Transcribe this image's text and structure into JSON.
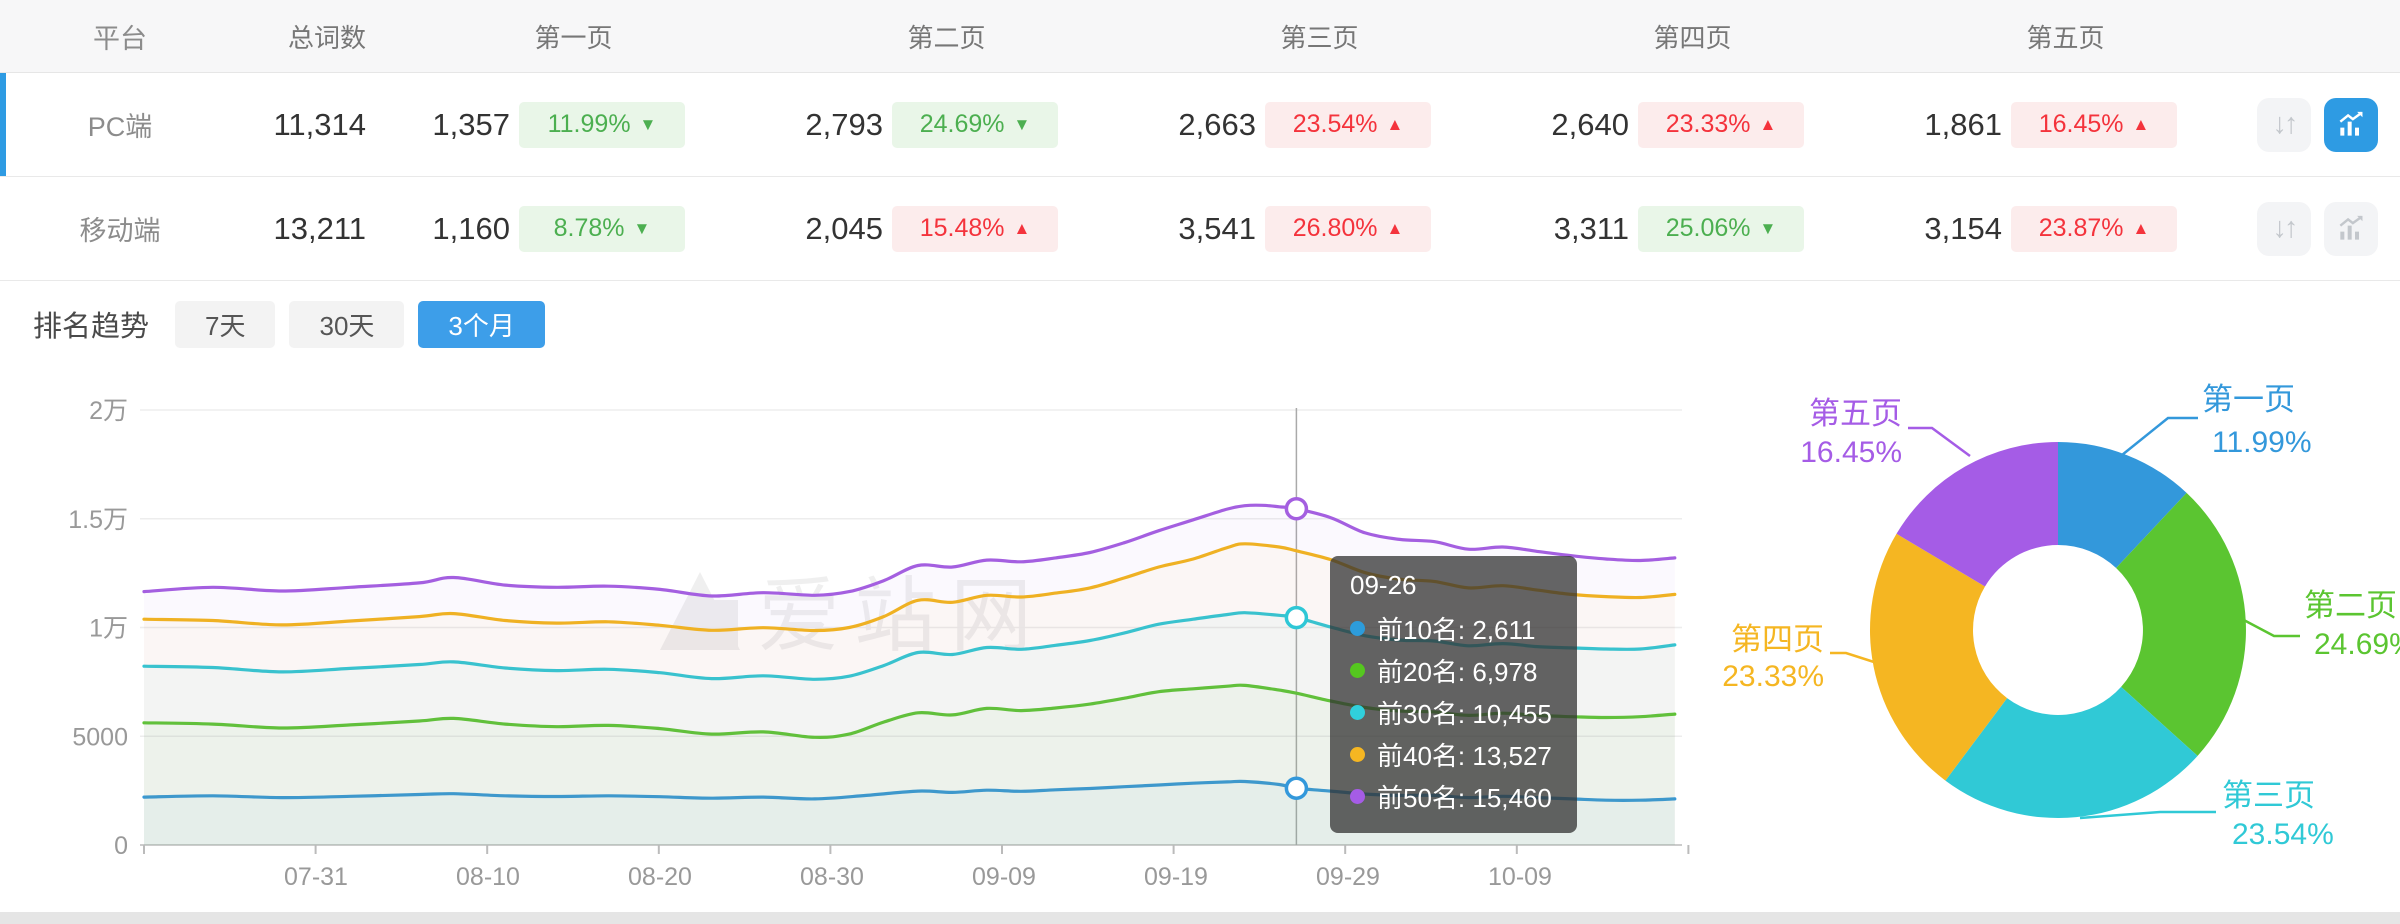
{
  "table": {
    "headers": {
      "platform": "平台",
      "total": "总词数",
      "p1": "第一页",
      "p2": "第二页",
      "p3": "第三页",
      "p4": "第四页",
      "p5": "第五页"
    },
    "rows": [
      {
        "platform": "PC端",
        "total": "11,314",
        "state": "selected",
        "chart_btn_state": "active",
        "p1": {
          "count": "1,357",
          "pct": "11.99%",
          "arrow": "▼",
          "trend": "down"
        },
        "p2": {
          "count": "2,793",
          "pct": "24.69%",
          "arrow": "▼",
          "trend": "down"
        },
        "p3": {
          "count": "2,663",
          "pct": "23.54%",
          "arrow": "▲",
          "trend": "up"
        },
        "p4": {
          "count": "2,640",
          "pct": "23.33%",
          "arrow": "▲",
          "trend": "up"
        },
        "p5": {
          "count": "1,861",
          "pct": "16.45%",
          "arrow": "▲",
          "trend": "up"
        }
      },
      {
        "platform": "移动端",
        "total": "13,211",
        "state": "",
        "chart_btn_state": "",
        "p1": {
          "count": "1,160",
          "pct": "8.78%",
          "arrow": "▼",
          "trend": "down"
        },
        "p2": {
          "count": "2,045",
          "pct": "15.48%",
          "arrow": "▲",
          "trend": "up"
        },
        "p3": {
          "count": "3,541",
          "pct": "26.80%",
          "arrow": "▲",
          "trend": "up"
        },
        "p4": {
          "count": "3,311",
          "pct": "25.06%",
          "arrow": "▼",
          "trend": "down"
        },
        "p5": {
          "count": "3,154",
          "pct": "23.87%",
          "arrow": "▲",
          "trend": "up"
        }
      }
    ]
  },
  "trend": {
    "title": "排名趋势",
    "tabs": [
      {
        "label": "7天",
        "state": ""
      },
      {
        "label": "30天",
        "state": ""
      },
      {
        "label": "3个月",
        "state": "active"
      }
    ]
  },
  "watermark": {
    "text": "爱站网"
  },
  "colors": {
    "accent_blue": "#2E9BE3",
    "green_badge": "#4CAF50",
    "red_badge": "#F4333C",
    "grid": "#ededed",
    "axis": "#cccccc",
    "tick_label": "#999999",
    "crosshair": "#aaaaaa"
  },
  "tooltip": {
    "date": "09-26",
    "items": [
      {
        "name": "前10名",
        "value": "2,611",
        "color": "#2D9CDB"
      },
      {
        "name": "前20名",
        "value": "6,978",
        "color": "#55C71F"
      },
      {
        "name": "前30名",
        "value": "10,455",
        "color": "#30D0DC"
      },
      {
        "name": "前40名",
        "value": "13,527",
        "color": "#F5B622"
      },
      {
        "name": "前50名",
        "value": "15,460",
        "color": "#A55CE6"
      }
    ]
  },
  "chart_data": [
    {
      "type": "line",
      "title": "排名趋势 (3个月)",
      "x_axis": {
        "unit": "day-offset from 07-21",
        "domain_days": [
          0,
          89
        ],
        "ticks": [
          {
            "day": 10,
            "label": "07-31"
          },
          {
            "day": 20,
            "label": "08-10"
          },
          {
            "day": 30,
            "label": "08-20"
          },
          {
            "day": 40,
            "label": "08-30"
          },
          {
            "day": 50,
            "label": "09-09"
          },
          {
            "day": 60,
            "label": "09-19"
          },
          {
            "day": 70,
            "label": "09-29"
          },
          {
            "day": 80,
            "label": "10-09"
          }
        ]
      },
      "y_axis": {
        "max": 20000,
        "ticks": [
          {
            "value": 0,
            "label": "0"
          },
          {
            "value": 5000,
            "label": "5000"
          },
          {
            "value": 10000,
            "label": "1万"
          },
          {
            "value": 15000,
            "label": "1.5万"
          },
          {
            "value": 20000,
            "label": "2万"
          }
        ]
      },
      "grid": true,
      "hover": {
        "day": 67,
        "date": "09-26",
        "marker_series": [
          "前10名",
          "前30名",
          "前50名"
        ]
      },
      "series": [
        {
          "name": "前10名",
          "color": "#3398DB",
          "points": [
            [
              0,
              2200
            ],
            [
              4,
              2260
            ],
            [
              8,
              2180
            ],
            [
              12,
              2240
            ],
            [
              16,
              2320
            ],
            [
              18,
              2360
            ],
            [
              21,
              2260
            ],
            [
              24,
              2230
            ],
            [
              27,
              2260
            ],
            [
              30,
              2220
            ],
            [
              33,
              2150
            ],
            [
              36,
              2200
            ],
            [
              39,
              2120
            ],
            [
              42,
              2280
            ],
            [
              45,
              2480
            ],
            [
              47,
              2420
            ],
            [
              49,
              2520
            ],
            [
              51,
              2470
            ],
            [
              53,
              2540
            ],
            [
              55,
              2600
            ],
            [
              57,
              2680
            ],
            [
              59,
              2760
            ],
            [
              61,
              2840
            ],
            [
              63,
              2900
            ],
            [
              64,
              2920
            ],
            [
              66,
              2780
            ],
            [
              67,
              2611
            ],
            [
              69,
              2480
            ],
            [
              71,
              2340
            ],
            [
              73,
              2280
            ],
            [
              75,
              2280
            ],
            [
              77,
              2180
            ],
            [
              79,
              2240
            ],
            [
              81,
              2180
            ],
            [
              83,
              2120
            ],
            [
              85,
              2060
            ],
            [
              87,
              2060
            ],
            [
              89,
              2120
            ]
          ]
        },
        {
          "name": "前20名",
          "color": "#5BC531",
          "points": [
            [
              0,
              5620
            ],
            [
              4,
              5560
            ],
            [
              8,
              5380
            ],
            [
              12,
              5520
            ],
            [
              16,
              5700
            ],
            [
              18,
              5820
            ],
            [
              21,
              5560
            ],
            [
              24,
              5440
            ],
            [
              27,
              5500
            ],
            [
              30,
              5350
            ],
            [
              33,
              5100
            ],
            [
              36,
              5200
            ],
            [
              39,
              4950
            ],
            [
              41,
              5100
            ],
            [
              43,
              5650
            ],
            [
              45,
              6080
            ],
            [
              47,
              5980
            ],
            [
              49,
              6280
            ],
            [
              51,
              6180
            ],
            [
              53,
              6300
            ],
            [
              55,
              6480
            ],
            [
              57,
              6750
            ],
            [
              59,
              7050
            ],
            [
              61,
              7180
            ],
            [
              63,
              7300
            ],
            [
              64,
              7340
            ],
            [
              66,
              7120
            ],
            [
              67,
              6978
            ],
            [
              69,
              6620
            ],
            [
              71,
              6320
            ],
            [
              73,
              6160
            ],
            [
              75,
              6120
            ],
            [
              77,
              5960
            ],
            [
              79,
              6060
            ],
            [
              81,
              5960
            ],
            [
              83,
              5900
            ],
            [
              85,
              5860
            ],
            [
              87,
              5900
            ],
            [
              89,
              6020
            ]
          ]
        },
        {
          "name": "前30名",
          "color": "#2EC7D6",
          "points": [
            [
              0,
              8220
            ],
            [
              4,
              8160
            ],
            [
              8,
              7960
            ],
            [
              12,
              8120
            ],
            [
              16,
              8300
            ],
            [
              18,
              8420
            ],
            [
              21,
              8140
            ],
            [
              24,
              8020
            ],
            [
              27,
              8080
            ],
            [
              30,
              7920
            ],
            [
              33,
              7650
            ],
            [
              36,
              7780
            ],
            [
              39,
              7620
            ],
            [
              41,
              7760
            ],
            [
              43,
              8250
            ],
            [
              45,
              8850
            ],
            [
              47,
              8760
            ],
            [
              49,
              9080
            ],
            [
              51,
              9000
            ],
            [
              53,
              9180
            ],
            [
              55,
              9400
            ],
            [
              57,
              9750
            ],
            [
              59,
              10150
            ],
            [
              61,
              10380
            ],
            [
              63,
              10600
            ],
            [
              64,
              10680
            ],
            [
              66,
              10560
            ],
            [
              67,
              10455
            ],
            [
              69,
              10020
            ],
            [
              71,
              9620
            ],
            [
              73,
              9420
            ],
            [
              75,
              9380
            ],
            [
              77,
              9160
            ],
            [
              79,
              9260
            ],
            [
              81,
              9120
            ],
            [
              83,
              9060
            ],
            [
              85,
              9010
            ],
            [
              87,
              9010
            ],
            [
              89,
              9200
            ]
          ]
        },
        {
          "name": "前40名",
          "color": "#F3B51C",
          "points": [
            [
              0,
              10380
            ],
            [
              4,
              10320
            ],
            [
              8,
              10120
            ],
            [
              12,
              10300
            ],
            [
              16,
              10500
            ],
            [
              18,
              10640
            ],
            [
              21,
              10320
            ],
            [
              24,
              10200
            ],
            [
              27,
              10260
            ],
            [
              30,
              10100
            ],
            [
              33,
              9870
            ],
            [
              36,
              9990
            ],
            [
              39,
              9860
            ],
            [
              41,
              10000
            ],
            [
              43,
              10500
            ],
            [
              45,
              11250
            ],
            [
              47,
              11160
            ],
            [
              49,
              11480
            ],
            [
              51,
              11400
            ],
            [
              53,
              11580
            ],
            [
              55,
              11820
            ],
            [
              57,
              12280
            ],
            [
              59,
              12780
            ],
            [
              61,
              13150
            ],
            [
              63,
              13680
            ],
            [
              64,
              13850
            ],
            [
              66,
              13700
            ],
            [
              67,
              13527
            ],
            [
              69,
              13120
            ],
            [
              71,
              12520
            ],
            [
              73,
              12220
            ],
            [
              75,
              12120
            ],
            [
              77,
              11820
            ],
            [
              79,
              11920
            ],
            [
              81,
              11720
            ],
            [
              83,
              11520
            ],
            [
              85,
              11420
            ],
            [
              87,
              11380
            ],
            [
              89,
              11520
            ]
          ]
        },
        {
          "name": "前50名",
          "color": "#A45FE0",
          "points": [
            [
              0,
              11650
            ],
            [
              4,
              11850
            ],
            [
              8,
              11680
            ],
            [
              12,
              11850
            ],
            [
              16,
              12050
            ],
            [
              18,
              12300
            ],
            [
              21,
              11950
            ],
            [
              24,
              11850
            ],
            [
              27,
              11900
            ],
            [
              30,
              11750
            ],
            [
              33,
              11450
            ],
            [
              36,
              11600
            ],
            [
              39,
              11480
            ],
            [
              41,
              11650
            ],
            [
              43,
              12150
            ],
            [
              45,
              12850
            ],
            [
              47,
              12780
            ],
            [
              49,
              13100
            ],
            [
              51,
              13020
            ],
            [
              53,
              13200
            ],
            [
              55,
              13450
            ],
            [
              57,
              13900
            ],
            [
              59,
              14450
            ],
            [
              61,
              14950
            ],
            [
              63,
              15450
            ],
            [
              64,
              15600
            ],
            [
              65,
              15620
            ],
            [
              66,
              15550
            ],
            [
              67,
              15460
            ],
            [
              69,
              15050
            ],
            [
              71,
              14350
            ],
            [
              73,
              14050
            ],
            [
              75,
              13950
            ],
            [
              77,
              13600
            ],
            [
              79,
              13700
            ],
            [
              81,
              13500
            ],
            [
              83,
              13300
            ],
            [
              85,
              13150
            ],
            [
              87,
              13080
            ],
            [
              89,
              13200
            ]
          ]
        }
      ]
    },
    {
      "type": "pie",
      "donut": true,
      "legend_position": "outside-labels",
      "slices": [
        {
          "label": "第一页",
          "pct": 11.99,
          "color": "#3398DB"
        },
        {
          "label": "第二页",
          "pct": 24.69,
          "color": "#5BC531"
        },
        {
          "label": "第三页",
          "pct": 23.54,
          "color": "#30C9D6"
        },
        {
          "label": "第四页",
          "pct": 23.33,
          "color": "#F5B622"
        },
        {
          "label": "第五页",
          "pct": 16.45,
          "color": "#A55CE6"
        }
      ]
    }
  ]
}
